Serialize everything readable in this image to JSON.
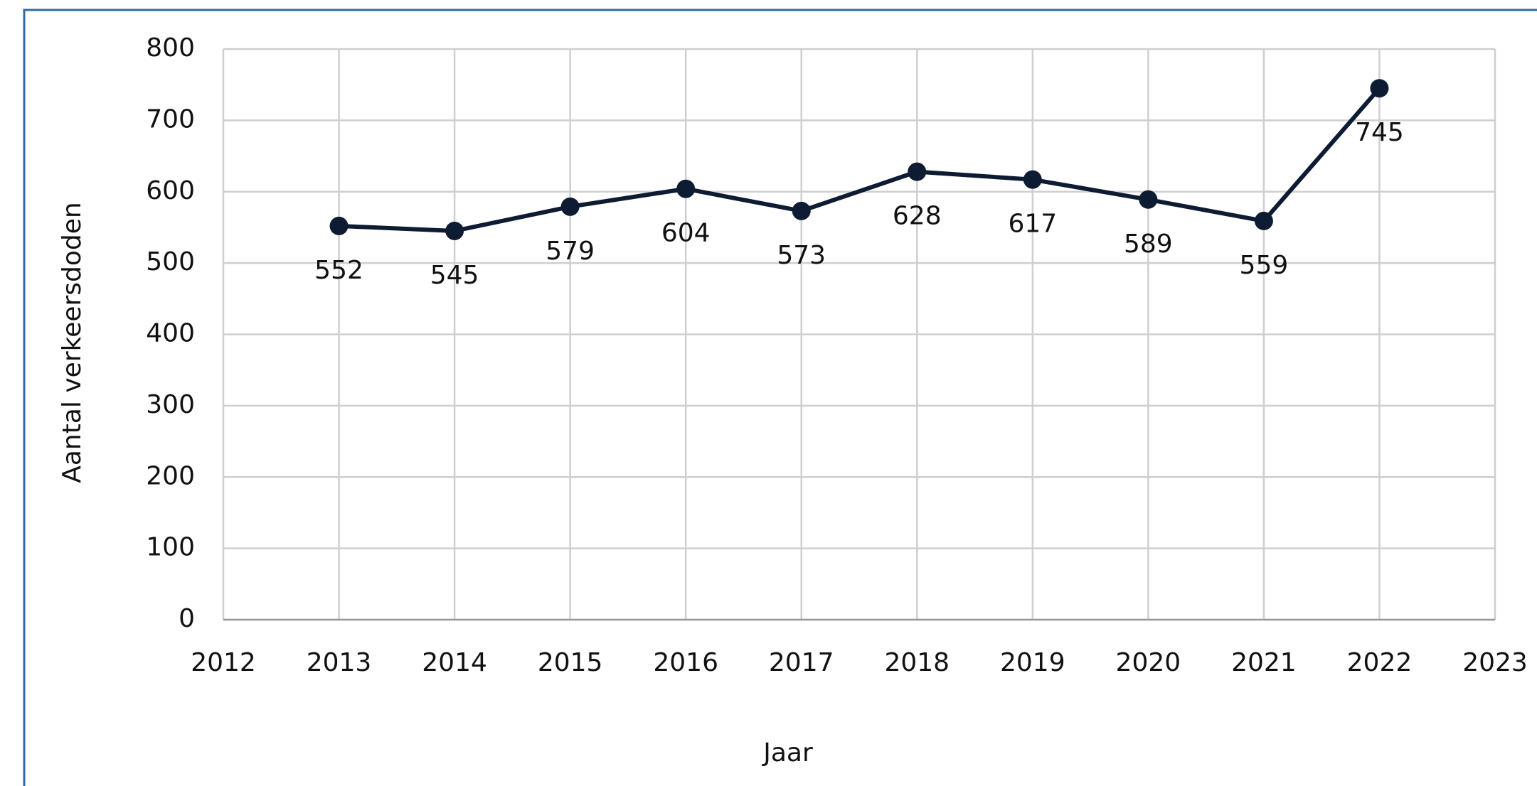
{
  "chart_data": {
    "type": "line",
    "x": [
      2013,
      2014,
      2015,
      2016,
      2017,
      2018,
      2019,
      2020,
      2021,
      2022
    ],
    "series": [
      {
        "name": "Aantal verkeersdoden",
        "color": "#0d1b33",
        "values": [
          552,
          545,
          579,
          604,
          573,
          628,
          617,
          589,
          559,
          745
        ]
      }
    ],
    "xlabel": "Jaar",
    "ylabel": "Aantal verkeersdoden",
    "xlim": [
      2012,
      2023
    ],
    "xticks": [
      2012,
      2013,
      2014,
      2015,
      2016,
      2017,
      2018,
      2019,
      2020,
      2021,
      2022,
      2023
    ],
    "ylim": [
      0,
      800
    ],
    "yticks": [
      0,
      100,
      200,
      300,
      400,
      500,
      600,
      700,
      800
    ],
    "grid": true,
    "data_labels": true
  }
}
